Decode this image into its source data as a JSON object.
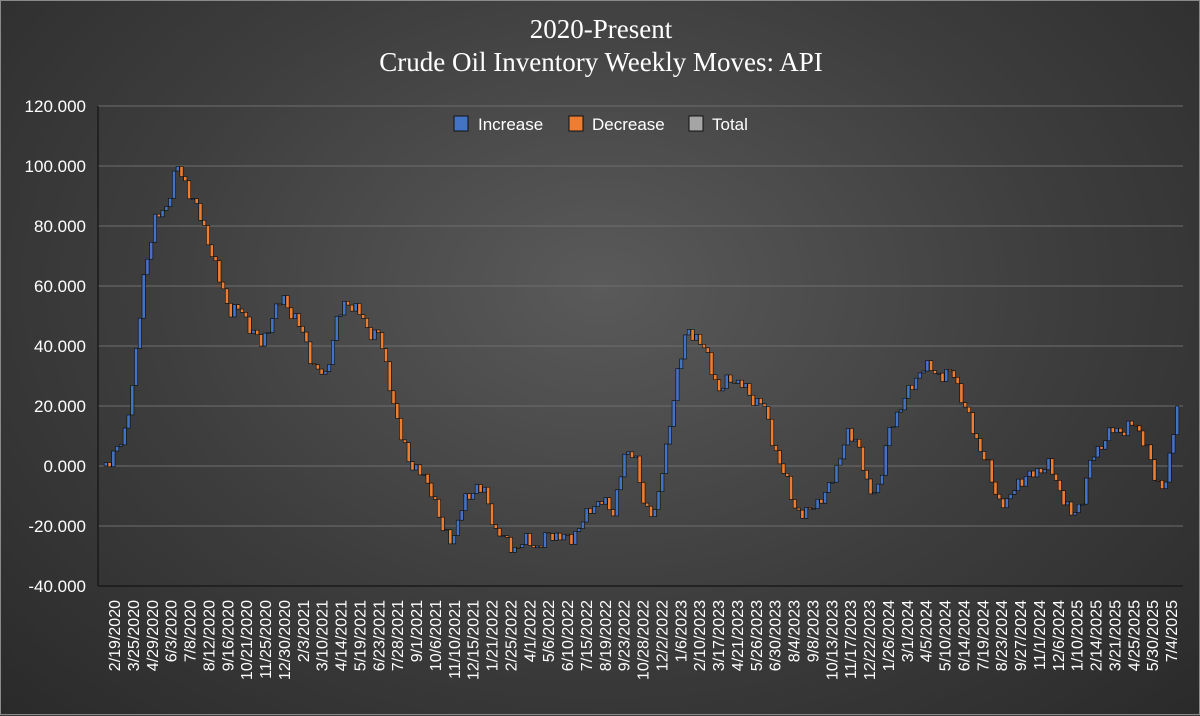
{
  "chart_data": {
    "type": "waterfall",
    "title_line1": "2020-Present",
    "title_line2": "Crude Oil Inventory Weekly Moves:  API",
    "legend": [
      "Increase",
      "Decrease",
      "Total"
    ],
    "legend_position": "top-center",
    "colors": {
      "increase": "#4472c4",
      "decrease": "#ed7d31",
      "total": "#a5a5a5",
      "outline": "#0a0a0a",
      "grid": "#6e6e6e",
      "text": "#ffffff"
    },
    "ylim": [
      -40,
      120
    ],
    "yticks": [
      "120.000",
      "100.000",
      "80.000",
      "60.000",
      "40.000",
      "20.000",
      "0.000",
      "-20.000",
      "-40.000"
    ],
    "ytick_values": [
      120,
      100,
      80,
      60,
      40,
      20,
      0,
      -20,
      -40
    ],
    "grid": true,
    "xticks": [
      "2/19/2020",
      "3/25/2020",
      "4/29/2020",
      "6/3/2020",
      "7/8/2020",
      "8/12/2020",
      "9/16/2020",
      "10/21/2020",
      "11/25/2020",
      "12/30/2020",
      "2/3/2021",
      "3/10/2021",
      "4/14/2021",
      "5/19/2021",
      "6/23/2021",
      "7/28/2021",
      "9/1/2021",
      "10/6/2021",
      "11/10/2021",
      "12/15/2021",
      "1/21/2022",
      "2/25/2022",
      "4/1/2022",
      "5/6/2022",
      "6/10/2022",
      "7/15/2022",
      "8/19/2022",
      "9/23/2022",
      "10/28/2022",
      "12/2/2022",
      "1/6/2023",
      "2/10/2023",
      "3/17/2023",
      "4/21/2023",
      "5/26/2023",
      "6/30/2023",
      "8/4/2023",
      "9/8/2023",
      "10/13/2023",
      "11/17/2023",
      "12/22/2023",
      "1/26/2024",
      "3/1/2024",
      "4/5/2024",
      "5/10/2024",
      "6/14/2024",
      "7/19/2024",
      "8/23/2024",
      "9/27/2024",
      "11/1/2024",
      "12/6/2024",
      "1/10/2025",
      "2/14/2025",
      "3/21/2025",
      "4/25/2025",
      "5/30/2025",
      "7/4/2025"
    ],
    "cumulative_anchors": [
      0,
      3,
      9,
      30,
      66,
      82,
      86,
      100,
      93,
      85,
      75,
      62,
      52,
      52,
      46,
      40,
      50,
      56,
      50,
      43,
      32,
      30,
      48,
      55,
      52,
      45,
      44,
      28,
      10,
      1,
      -3,
      -8,
      -22,
      -24,
      -12,
      -7,
      -9,
      -22,
      -25,
      -28,
      -24,
      -28,
      -22,
      -24,
      -24,
      -20,
      -13,
      -12,
      -15,
      2,
      6,
      -16,
      -14,
      5,
      31,
      45,
      43,
      35,
      25,
      29,
      28,
      22,
      22,
      8,
      -2,
      -13,
      -17,
      -12,
      -10,
      0,
      10,
      9,
      -10,
      -6,
      12,
      20,
      26,
      33,
      32,
      30,
      31,
      20,
      10,
      2,
      -10,
      -13,
      -5,
      -4,
      -1,
      0,
      -8,
      -17,
      -12,
      3,
      8,
      12,
      12,
      14,
      8,
      -6,
      -5,
      20
    ]
  }
}
